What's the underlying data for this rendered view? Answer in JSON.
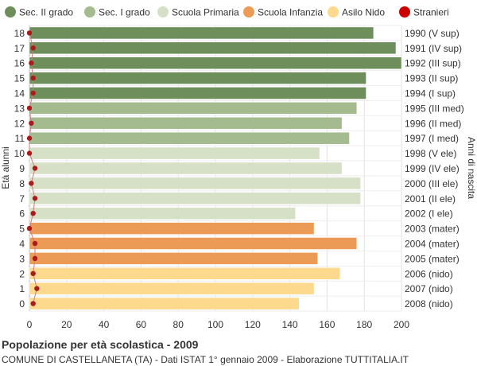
{
  "chart_data": {
    "type": "bar",
    "orientation": "horizontal",
    "title": "Popolazione per età scolastica - 2009",
    "subtitle": "COMUNE DI CASTELLANETA (TA) - Dati ISTAT 1° gennaio 2009 - Elaborazione TUTTITALIA.IT",
    "ylabel_left": "Età alunni",
    "ylabel_right": "Anni di nascita",
    "xlim": [
      0,
      200
    ],
    "xticks": [
      0,
      20,
      40,
      60,
      80,
      100,
      120,
      140,
      160,
      180,
      200
    ],
    "grid": true,
    "legend_position": "top",
    "legend": [
      {
        "label": "Sec. II grado",
        "color": "#6e8f5b",
        "marker": "circle"
      },
      {
        "label": "Sec. I grado",
        "color": "#a3bb8f",
        "marker": "circle"
      },
      {
        "label": "Scuola Primaria",
        "color": "#d5e0c7",
        "marker": "circle"
      },
      {
        "label": "Scuola Infanzia",
        "color": "#eb9b55",
        "marker": "circle"
      },
      {
        "label": "Asilo Nido",
        "color": "#fcd98c",
        "marker": "circle"
      },
      {
        "label": "Stranieri",
        "color": "#cc0000",
        "marker": "circle"
      }
    ],
    "categories": [
      "18",
      "17",
      "16",
      "15",
      "14",
      "13",
      "12",
      "11",
      "10",
      "9",
      "8",
      "7",
      "6",
      "5",
      "4",
      "3",
      "2",
      "1",
      "0"
    ],
    "birth_years": [
      "1990 (V sup)",
      "1991 (IV sup)",
      "1992 (III sup)",
      "1993 (II sup)",
      "1994 (I sup)",
      "1995 (III med)",
      "1996 (II med)",
      "1997 (I med)",
      "1998 (V ele)",
      "1999 (IV ele)",
      "2000 (III ele)",
      "2001 (II ele)",
      "2002 (I ele)",
      "2003 (mater)",
      "2004 (mater)",
      "2005 (mater)",
      "2006 (nido)",
      "2007 (nido)",
      "2008 (nido)"
    ],
    "values": [
      185,
      197,
      200,
      181,
      181,
      176,
      168,
      172,
      156,
      168,
      178,
      178,
      143,
      153,
      176,
      155,
      167,
      153,
      145
    ],
    "groups": [
      "sec2",
      "sec2",
      "sec2",
      "sec2",
      "sec2",
      "sec1",
      "sec1",
      "sec1",
      "prim",
      "prim",
      "prim",
      "prim",
      "prim",
      "inf",
      "inf",
      "inf",
      "nido",
      "nido",
      "nido"
    ],
    "group_colors": {
      "sec2": "#6e8f5b",
      "sec1": "#a3bb8f",
      "prim": "#d5e0c7",
      "inf": "#eb9b55",
      "nido": "#fcd98c"
    },
    "stranieri": [
      0,
      2,
      1,
      2,
      2,
      0,
      1,
      0,
      0,
      3,
      1,
      3,
      2,
      0,
      3,
      3,
      2,
      4,
      2
    ],
    "stranieri_color": "#aa1b1b"
  }
}
